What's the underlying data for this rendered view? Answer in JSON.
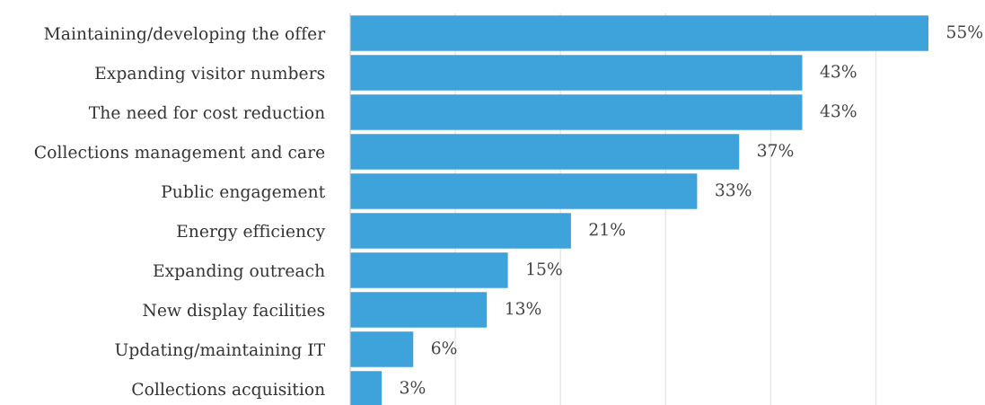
{
  "chart_data": {
    "type": "bar",
    "orientation": "horizontal",
    "categories": [
      "Maintaining/developing the offer",
      "Expanding visitor numbers",
      "The need for cost reduction",
      "Collections management and care",
      "Public engagement",
      "Energy efficiency",
      "Expanding outreach",
      "New display facilities",
      "Updating/maintaining IT",
      "Collections acquisition"
    ],
    "values": [
      55,
      43,
      43,
      37,
      33,
      21,
      15,
      13,
      6,
      3
    ],
    "value_labels": [
      "55%",
      "43%",
      "43%",
      "37%",
      "33%",
      "21%",
      "15%",
      "13%",
      "6%",
      "3%"
    ],
    "color": "#3fa3db",
    "xlim": [
      0,
      55
    ],
    "xticks": [
      {
        "value": 0,
        "label": null
      },
      {
        "value": 10,
        "label": null
      },
      {
        "value": 20,
        "label": null
      },
      {
        "value": 30,
        "label": null
      },
      {
        "value": 40,
        "label": null
      },
      {
        "value": 50,
        "label": null
      }
    ],
    "grid": "x",
    "tick_labels": "y"
  }
}
